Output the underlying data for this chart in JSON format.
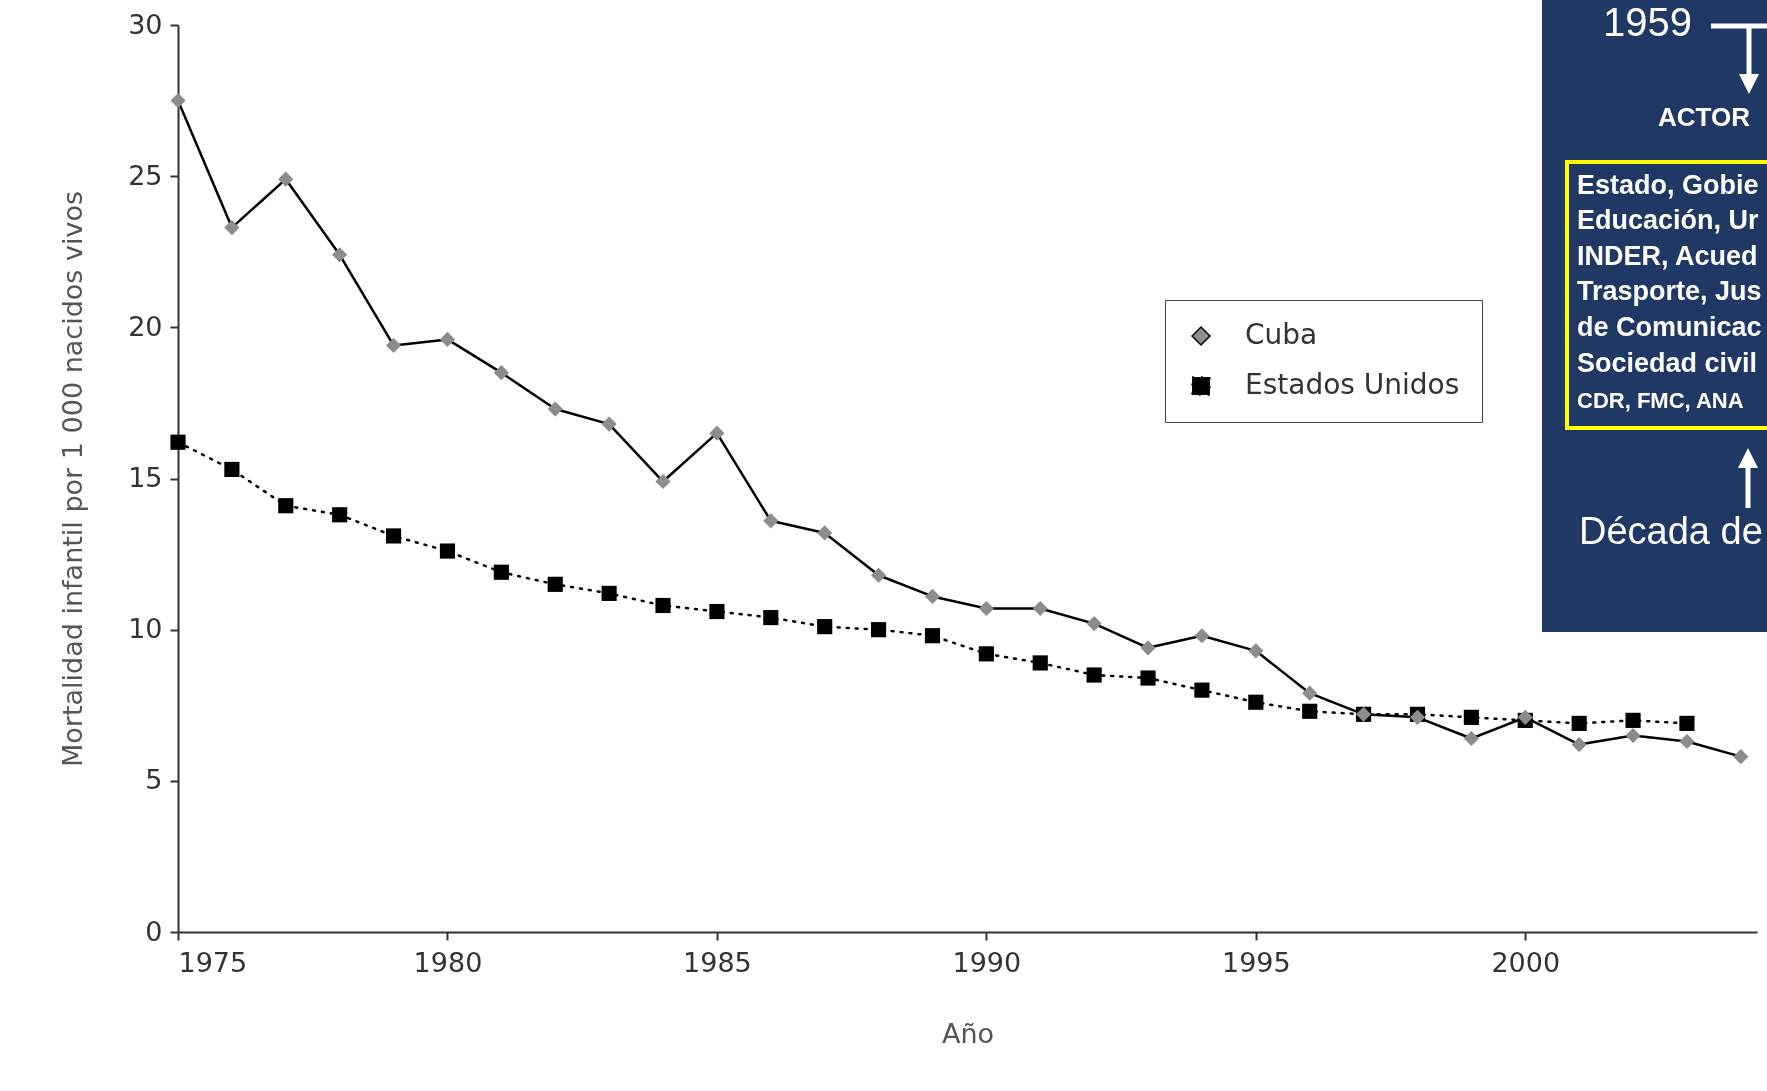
{
  "chart_data": [
    {
      "type": "line",
      "xlabel": "Año",
      "ylabel": "Mortalidad infantil por 1 000 nacidos vivos",
      "xlim": [
        1975,
        2004.3
      ],
      "xticks": [
        1975,
        1980,
        1985,
        1990,
        1995,
        2000
      ],
      "ylim": [
        0,
        30
      ],
      "yticks": [
        0,
        5,
        10,
        15,
        20,
        25,
        30
      ],
      "grid": false,
      "legend": "top right",
      "series": [
        {
          "name": "Cuba",
          "color": "#000000",
          "colors": [
            "#8c8c8c",
            "#8c8c8c",
            "#8c8c8c",
            "#8c8c8c",
            "#8c8c8c",
            "#8c8c8c",
            "#8c8c8c",
            "#8c8c8c",
            "#8c8c8c",
            "#8c8c8c",
            "#8c8c8c",
            "#8c8c8c",
            "#8c8c8c",
            "#8c8c8c",
            "#8c8c8c",
            "#8c8c8c",
            "#8c8c8c",
            "#8c8c8c",
            "#8c8c8c",
            "#8c8c8c",
            "#8c8c8c",
            "#8c8c8c",
            "#8c8c8c",
            "#8c8c8c",
            "#8c8c8c",
            "#8c8c8c",
            "#8c8c8c",
            "#8c8c8c",
            "#8c8c8c",
            "#8c8c8c"
          ],
          "marker": "diamond",
          "line_style": "solid",
          "x": [
            1975,
            1976,
            1977,
            1978,
            1979,
            1980,
            1981,
            1982,
            1983,
            1984,
            1985,
            1986,
            1987,
            1988,
            1989,
            1990,
            1991,
            1992,
            1993,
            1994,
            1995,
            1996,
            1997,
            1998,
            1999,
            2000,
            2001,
            2002,
            2003,
            2004
          ],
          "values": [
            27.5,
            23.3,
            24.9,
            22.4,
            19.4,
            19.6,
            18.5,
            17.3,
            16.8,
            14.9,
            16.5,
            13.6,
            13.2,
            11.8,
            11.1,
            10.7,
            10.7,
            10.2,
            9.4,
            9.8,
            9.3,
            7.9,
            7.2,
            7.1,
            6.4,
            7.1,
            6.2,
            6.5,
            6.3,
            5.8
          ]
        },
        {
          "name": "Estados Unidos",
          "color": "#000000",
          "marker": "square",
          "line_style": "dotted",
          "x": [
            1975,
            1976,
            1977,
            1978,
            1979,
            1980,
            1981,
            1982,
            1983,
            1984,
            1985,
            1986,
            1987,
            1988,
            1989,
            1990,
            1991,
            1992,
            1993,
            1994,
            1995,
            1996,
            1997,
            1998,
            1999,
            2000,
            2001,
            2002,
            2003
          ],
          "values": [
            16.2,
            15.3,
            14.1,
            13.8,
            13.1,
            12.6,
            11.9,
            11.5,
            11.2,
            10.8,
            10.6,
            10.4,
            10.1,
            10.0,
            9.8,
            9.2,
            8.9,
            8.5,
            8.4,
            8.0,
            7.6,
            7.3,
            7.2,
            7.2,
            7.1,
            7.0,
            6.9,
            7.0,
            6.9
          ]
        }
      ]
    },
    {
      "type": "other",
      "annotations": [
        "1959",
        "ACTOR",
        "Estado, Gobie",
        "Educación, Ur",
        "INDER, Acued",
        "Trasporte, Jus",
        "de Comunicac",
        "Sociedad civil",
        "CDR, FMC, ANA",
        "Década de"
      ]
    }
  ]
}
